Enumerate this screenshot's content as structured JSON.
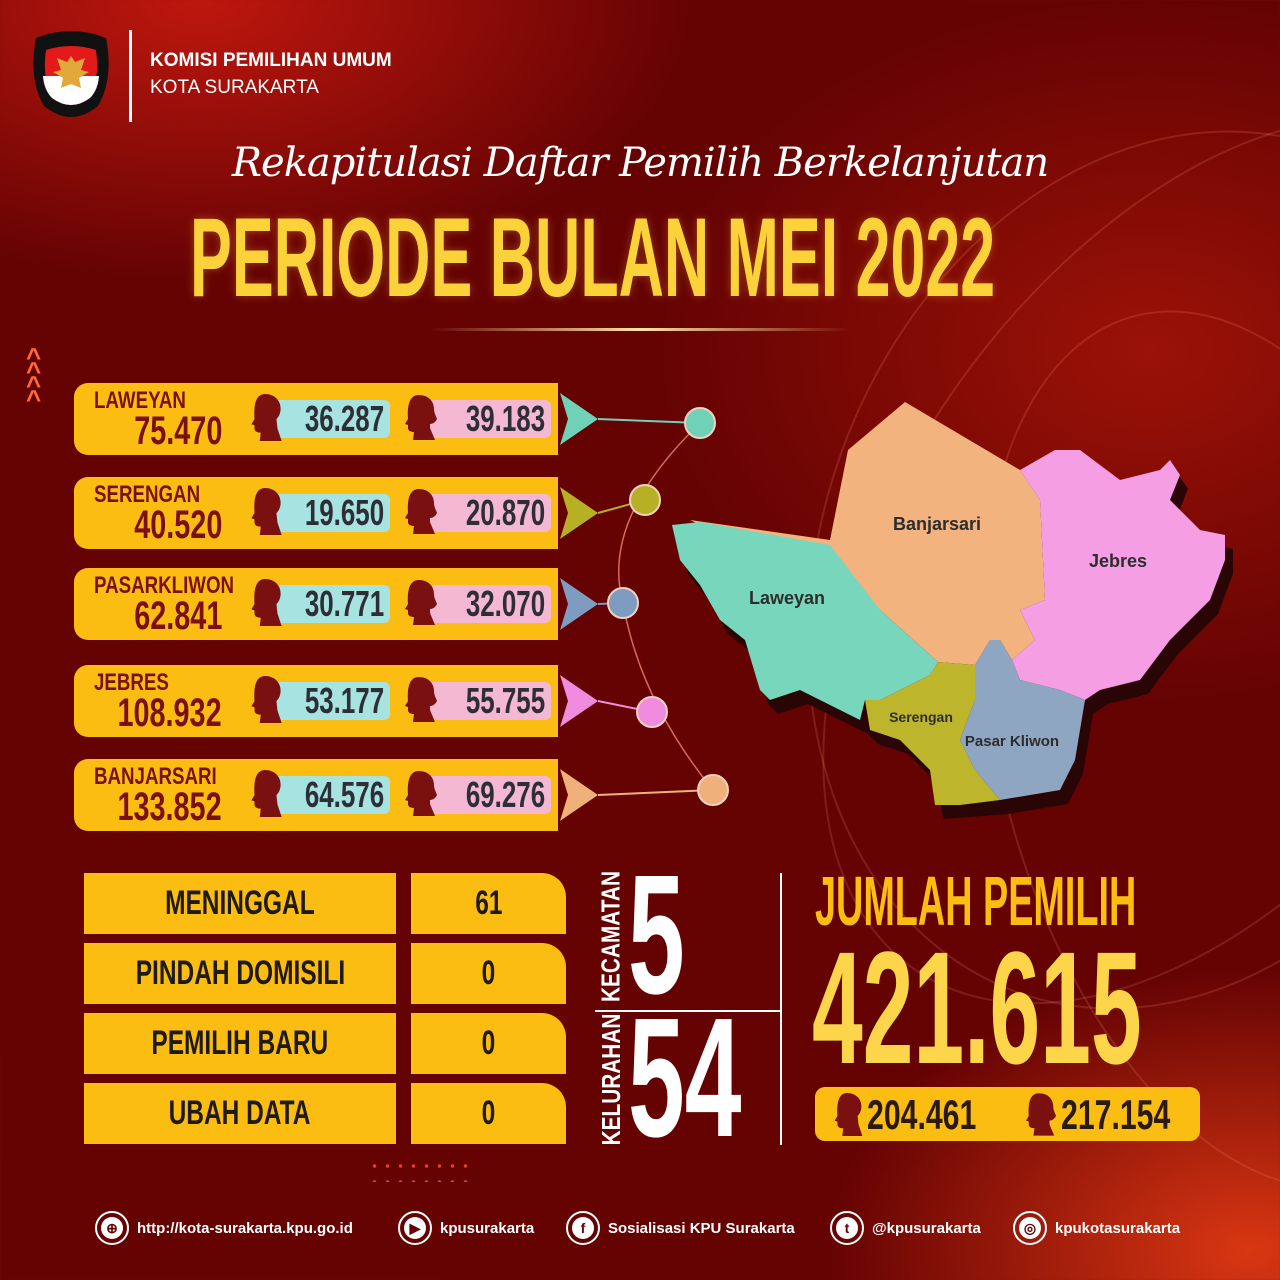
{
  "header": {
    "org": "KOMISI PEMILIHAN UMUM",
    "city": "KOTA SURAKARTA",
    "logo_text": "KOMISI PEMILIHAN UMUM"
  },
  "title": {
    "script": "Rekapitulasi Daftar Pemilih Berkelanjutan",
    "main": "PERIODE BULAN MEI 2022"
  },
  "districts": [
    {
      "name": "LAWEYAN",
      "total": "75.470",
      "male": "36.287",
      "female": "39.183",
      "color": "#6fd1b8"
    },
    {
      "name": "SERENGAN",
      "total": "40.520",
      "male": "19.650",
      "female": "20.870",
      "color": "#b7b024"
    },
    {
      "name": "PASARKLIWON",
      "total": "62.841",
      "male": "30.771",
      "female": "32.070",
      "color": "#7e9bc0"
    },
    {
      "name": "JEBRES",
      "total": "108.932",
      "male": "53.177",
      "female": "55.755",
      "color": "#f08be0"
    },
    {
      "name": "BANJARSARI",
      "total": "133.852",
      "male": "64.576",
      "female": "69.276",
      "color": "#f0b07a"
    }
  ],
  "map": {
    "labels": {
      "banjarsari": "Banjarsari",
      "jebres": "Jebres",
      "laweyan": "Laweyan",
      "serengan": "Serengan",
      "pasar_kliwon": "Pasar Kliwon"
    }
  },
  "stats": [
    {
      "label": "MENINGGAL",
      "value": "61"
    },
    {
      "label": "PINDAH DOMISILI",
      "value": "0"
    },
    {
      "label": "PEMILIH BARU",
      "value": "0"
    },
    {
      "label": "UBAH DATA",
      "value": "0"
    }
  ],
  "counts": {
    "kecamatan_label": "KECAMATAN",
    "kecamatan": "5",
    "kelurahan_label": "KELURAHAN",
    "kelurahan": "54"
  },
  "summary": {
    "label": "JUMLAH PEMILIH",
    "total": "421.615",
    "male": "204.461",
    "female": "217.154"
  },
  "footer": [
    {
      "icon": "globe-icon",
      "text": "http://kota-surakarta.kpu.go.id"
    },
    {
      "icon": "youtube-icon",
      "text": "kpusurakarta"
    },
    {
      "icon": "facebook-icon",
      "text": "Sosialisasi KPU Surakarta"
    },
    {
      "icon": "twitter-icon",
      "text": "@kpusurakarta"
    },
    {
      "icon": "instagram-icon",
      "text": "kpukotasurakarta"
    }
  ],
  "colors": {
    "accent": "#fcbd12",
    "title": "#fcd23a",
    "background": "#650303",
    "text_dark": "#7a1010",
    "male_pill": "#a7e3e0",
    "female_pill": "#f4b8d3"
  }
}
